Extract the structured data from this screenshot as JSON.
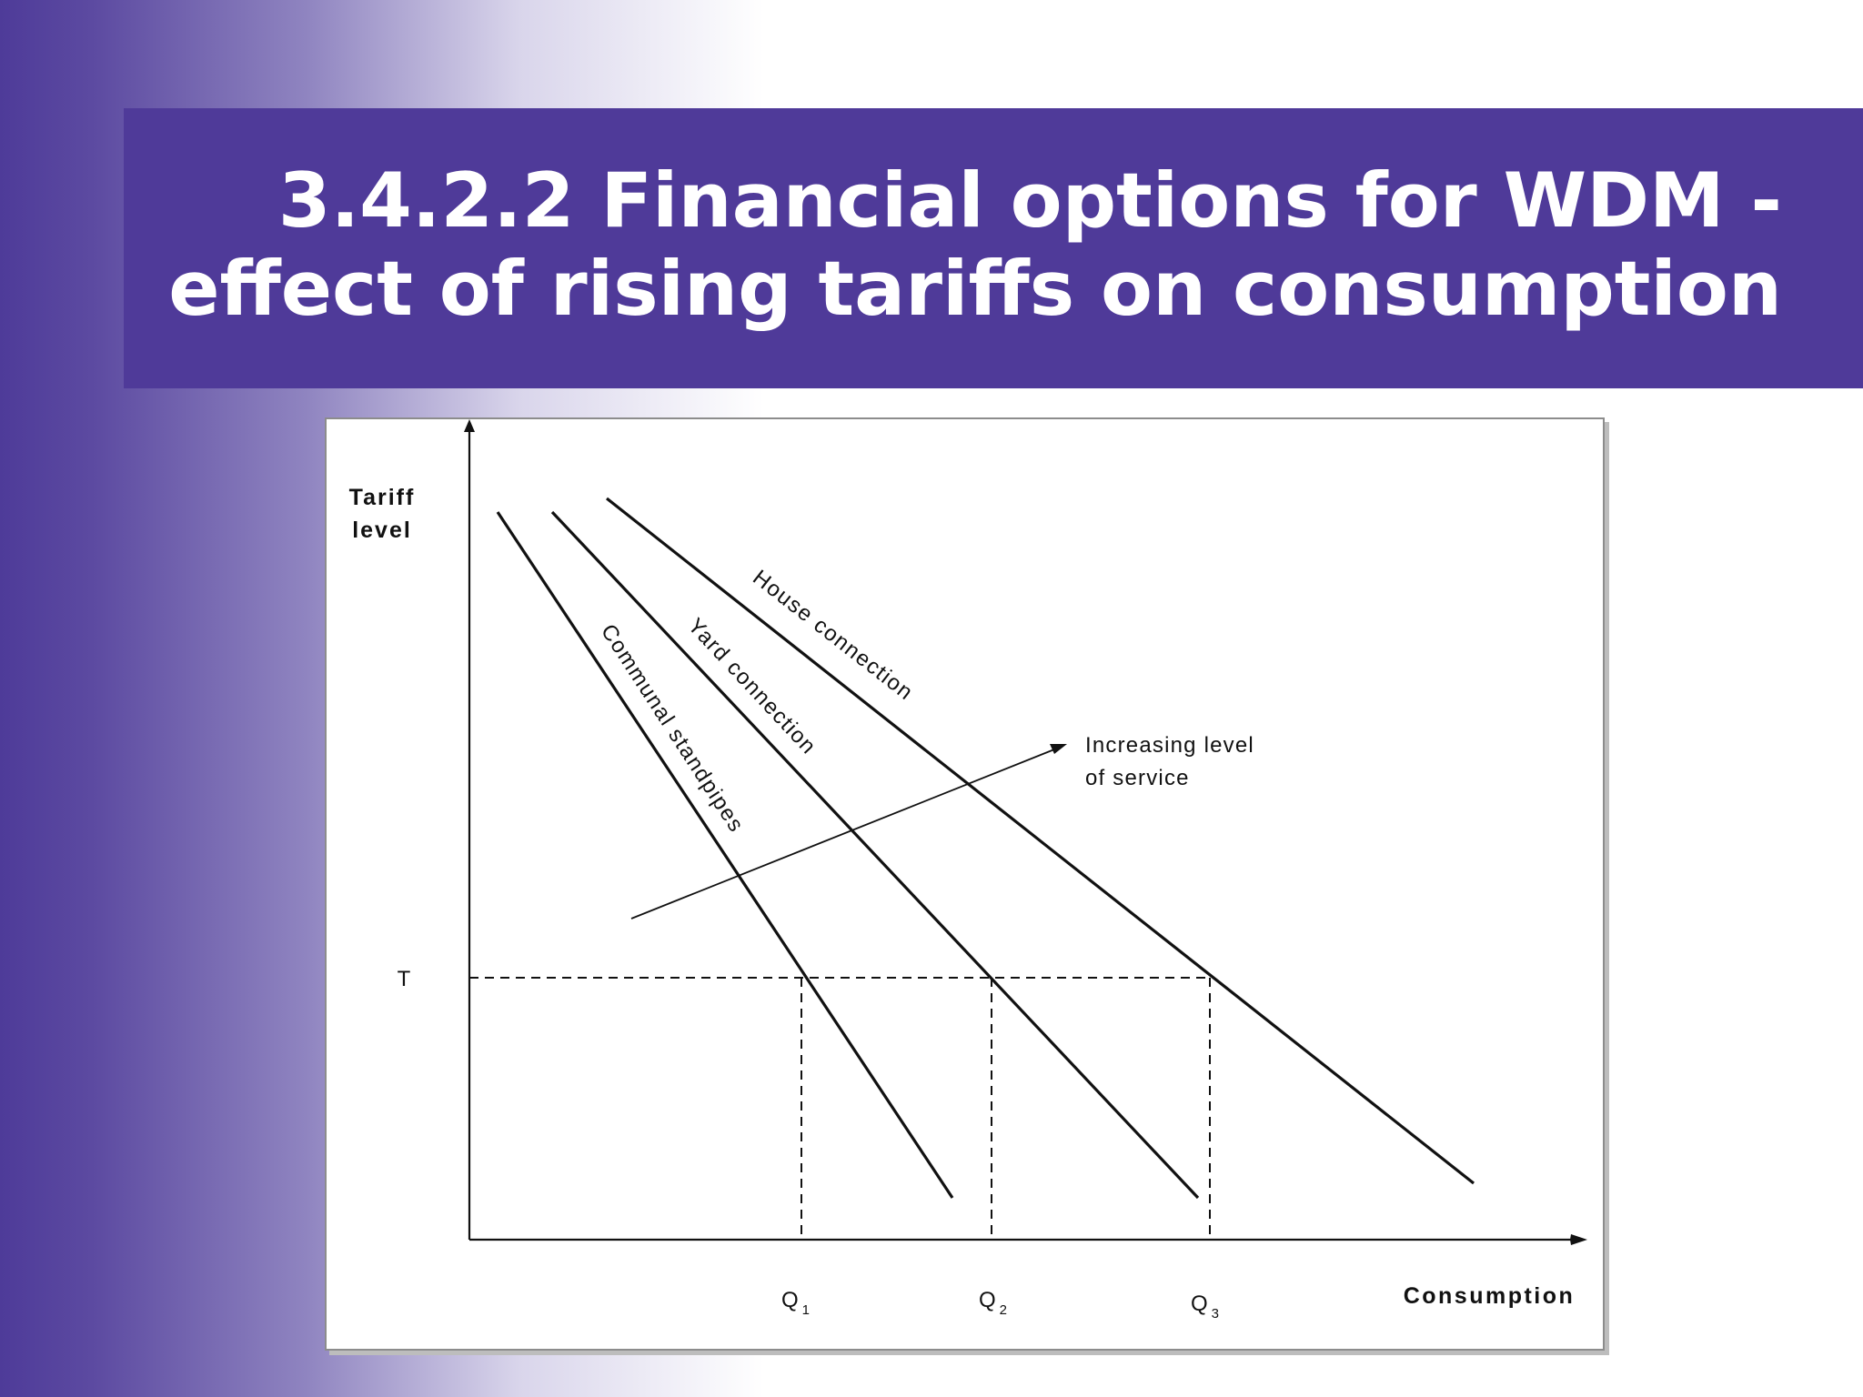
{
  "slide": {
    "title_line1": "3.4.2.2 Financial options for WDM -",
    "title_line2": "effect of rising tariffs on consumption"
  },
  "diagram": {
    "y_axis_label_line1": "Tariff",
    "y_axis_label_line2": "level",
    "x_axis_label": "Consumption",
    "tariff_marker": "T",
    "quantity_markers": [
      {
        "main": "Q",
        "sub": "1"
      },
      {
        "main": "Q",
        "sub": "2"
      },
      {
        "main": "Q",
        "sub": "3"
      }
    ],
    "curves": [
      {
        "name": "Communal standpipes"
      },
      {
        "name": "Yard connection"
      },
      {
        "name": "House connection"
      }
    ],
    "service_arrow_line1": "Increasing level",
    "service_arrow_line2": "of service",
    "colors": {
      "band": "#4f3a99",
      "line": "#111111"
    }
  }
}
